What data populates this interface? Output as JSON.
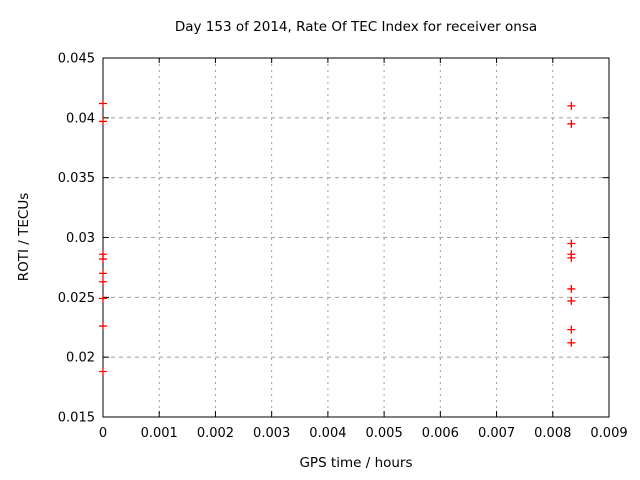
{
  "figure": {
    "title": "Day 153 of 2014, Rate Of TEC Index for receiver onsa",
    "xlabel": "GPS time / hours",
    "ylabel": "ROTI / TECUs"
  },
  "chart_data": {
    "type": "scatter",
    "title": "Day 153 of 2014, Rate Of TEC Index for receiver onsa",
    "xlabel": "GPS time / hours",
    "ylabel": "ROTI / TECUs",
    "xlim": [
      0,
      0.009
    ],
    "ylim": [
      0.015,
      0.045
    ],
    "xticks": {
      "values": [
        0,
        0.001,
        0.002,
        0.003,
        0.004,
        0.005,
        0.006,
        0.007,
        0.008,
        0.009
      ],
      "labels": [
        "0",
        "0.001",
        "0.002",
        "0.003",
        "0.004",
        "0.005",
        "0.006",
        "0.007",
        "0.008",
        "0.009"
      ]
    },
    "yticks": {
      "values": [
        0.015,
        0.02,
        0.025,
        0.03,
        0.035,
        0.04,
        0.045
      ],
      "labels": [
        "0.015",
        "0.02",
        "0.025",
        "0.03",
        "0.035",
        "0.04",
        "0.045"
      ]
    },
    "grid": true,
    "legend": "none",
    "marker": "plus",
    "marker_color": "#ff0000",
    "grid_color": "#9e9e9e",
    "axis_color": "#000000",
    "series": [
      {
        "name": "ROTI",
        "points": [
          [
            0,
            0.0412
          ],
          [
            0,
            0.0397
          ],
          [
            0,
            0.0286
          ],
          [
            0,
            0.0282
          ],
          [
            0,
            0.027
          ],
          [
            0,
            0.0263
          ],
          [
            0,
            0.0249
          ],
          [
            0,
            0.0226
          ],
          [
            0,
            0.0188
          ],
          [
            0.00833,
            0.041
          ],
          [
            0.00833,
            0.0395
          ],
          [
            0.00833,
            0.0295
          ],
          [
            0.00833,
            0.0286
          ],
          [
            0.00833,
            0.0283
          ],
          [
            0.00833,
            0.0257
          ],
          [
            0.00833,
            0.0247
          ],
          [
            0.00833,
            0.0223
          ],
          [
            0.00833,
            0.0212
          ]
        ]
      }
    ]
  }
}
